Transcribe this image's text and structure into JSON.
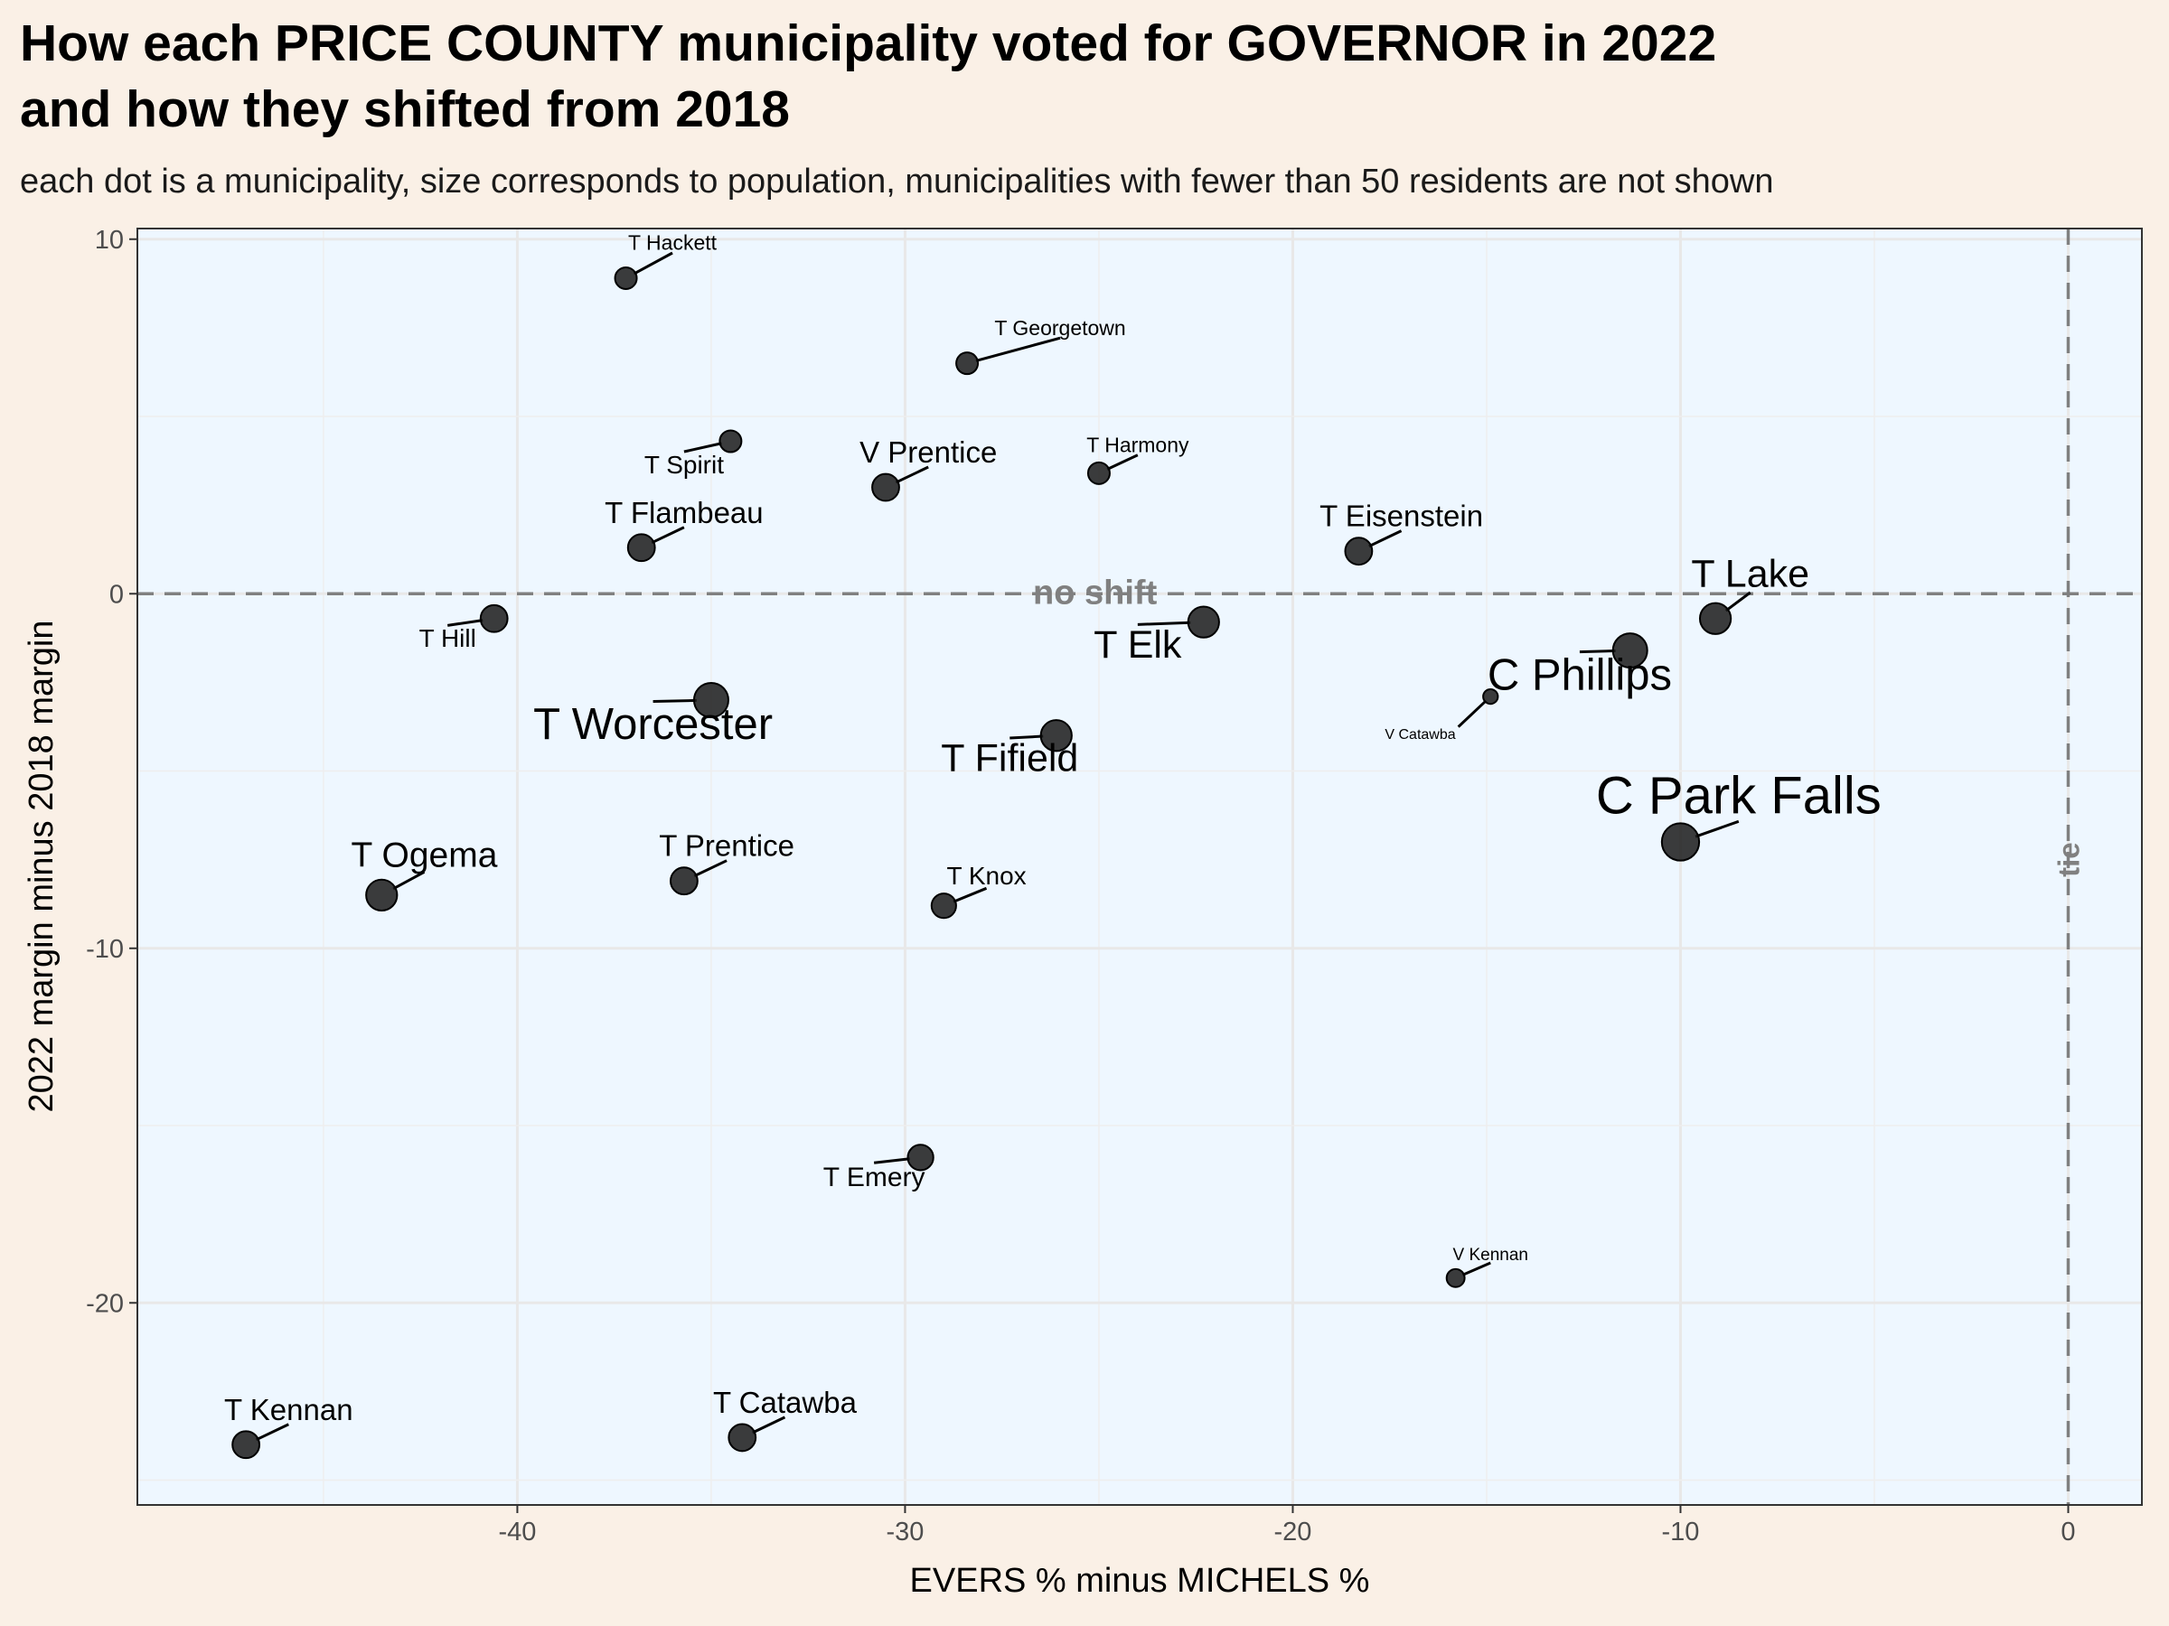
{
  "chart_data": {
    "type": "scatter",
    "title_line1": "How each PRICE COUNTY municipality voted for GOVERNOR in 2022",
    "title_line2": "and how they shifted from 2018",
    "subtitle": "each dot is a municipality, size corresponds to population, municipalities with fewer than 50 residents are not shown",
    "xlabel": "EVERS % minus MICHELS %",
    "ylabel": "2022 margin minus 2018 margin",
    "xlim": [
      -49.8,
      1.9
    ],
    "ylim": [
      -25.7,
      10.3
    ],
    "x_ticks": [
      -40,
      -30,
      -20,
      -10,
      0
    ],
    "y_ticks": [
      10,
      0,
      -10,
      -20
    ],
    "x_tick_labels": [
      "-40",
      "-30",
      "-20",
      "-10",
      "0"
    ],
    "y_tick_labels": [
      "10",
      "0",
      "-10",
      "-20"
    ],
    "reference_lines": {
      "horizontal": {
        "y": 0,
        "label": "no shift"
      },
      "vertical": {
        "x": 0,
        "label": "tie"
      }
    },
    "point_color": "#1a1a1a",
    "panel_background": "#EEF7FF",
    "page_background": "#FAF0E6",
    "grid": true,
    "points": [
      {
        "label": "T Hackett",
        "x": -37.2,
        "y": 8.9,
        "size": 1,
        "lx": -36.0,
        "ly": 9.7,
        "label_anchor": "middle",
        "label_size": 1
      },
      {
        "label": "T Georgetown",
        "x": -28.4,
        "y": 6.5,
        "size": 1,
        "lx": -26.0,
        "ly": 7.3,
        "label_anchor": "middle",
        "label_size": 1
      },
      {
        "label": "T Spirit",
        "x": -34.5,
        "y": 4.3,
        "size": 1,
        "lx": -35.7,
        "ly": 3.4,
        "label_anchor": "middle",
        "label_size": 1.5
      },
      {
        "label": "V Prentice",
        "x": -30.5,
        "y": 3.0,
        "size": 2,
        "lx": -29.4,
        "ly": 3.7,
        "label_anchor": "middle",
        "label_size": 2
      },
      {
        "label": "T Harmony",
        "x": -25.0,
        "y": 3.4,
        "size": 1,
        "lx": -24.0,
        "ly": 4.0,
        "label_anchor": "middle",
        "label_size": 1
      },
      {
        "label": "T Flambeau",
        "x": -36.8,
        "y": 1.3,
        "size": 2,
        "lx": -35.7,
        "ly": 2.0,
        "label_anchor": "middle",
        "label_size": 2
      },
      {
        "label": "T Eisenstein",
        "x": -18.3,
        "y": 1.2,
        "size": 2,
        "lx": -17.2,
        "ly": 1.9,
        "label_anchor": "middle",
        "label_size": 2
      },
      {
        "label": "T Lake",
        "x": -9.1,
        "y": -0.7,
        "size": 3,
        "lx": -8.2,
        "ly": 0.2,
        "label_anchor": "middle",
        "label_size": 3
      },
      {
        "label": "T Hill",
        "x": -40.6,
        "y": -0.7,
        "size": 2,
        "lx": -41.8,
        "ly": -1.5,
        "label_anchor": "middle",
        "label_size": 1.5
      },
      {
        "label": "T Elk",
        "x": -22.3,
        "y": -0.8,
        "size": 3,
        "lx": -24.0,
        "ly": -1.8,
        "label_anchor": "middle",
        "label_size": 3
      },
      {
        "label": "C Phillips",
        "x": -11.3,
        "y": -1.6,
        "size": 4,
        "lx": -12.6,
        "ly": -2.7,
        "label_anchor": "middle",
        "label_size": 3.6
      },
      {
        "label": "V Catawba",
        "x": -14.9,
        "y": -2.9,
        "size": 0.2,
        "lx": -15.8,
        "ly": -4.1,
        "label_anchor": "end",
        "label_size": 0.3
      },
      {
        "label": "T Worcester",
        "x": -35.0,
        "y": -3.0,
        "size": 4,
        "lx": -36.5,
        "ly": -4.1,
        "label_anchor": "middle",
        "label_size": 3.6
      },
      {
        "label": "T Fifield",
        "x": -26.1,
        "y": -4.0,
        "size": 3,
        "lx": -27.3,
        "ly": -5.0,
        "label_anchor": "middle",
        "label_size": 3
      },
      {
        "label": "C Park Falls",
        "x": -10.0,
        "y": -7.0,
        "size": 5,
        "lx": -8.5,
        "ly": -6.2,
        "label_anchor": "middle",
        "label_size": 4.5
      },
      {
        "label": "T Ogema",
        "x": -43.5,
        "y": -8.5,
        "size": 3,
        "lx": -42.4,
        "ly": -7.7,
        "label_anchor": "middle",
        "label_size": 2.6
      },
      {
        "label": "T Prentice",
        "x": -35.7,
        "y": -8.1,
        "size": 2,
        "lx": -34.6,
        "ly": -7.4,
        "label_anchor": "middle",
        "label_size": 2
      },
      {
        "label": "T Knox",
        "x": -29.0,
        "y": -8.8,
        "size": 1.5,
        "lx": -27.9,
        "ly": -8.2,
        "label_anchor": "middle",
        "label_size": 1.5
      },
      {
        "label": "T Emery",
        "x": -29.6,
        "y": -15.9,
        "size": 1.7,
        "lx": -30.8,
        "ly": -16.7,
        "label_anchor": "middle",
        "label_size": 1.7
      },
      {
        "label": "V Kennan",
        "x": -15.8,
        "y": -19.3,
        "size": 0.5,
        "lx": -14.9,
        "ly": -18.8,
        "label_anchor": "middle",
        "label_size": 0.6
      },
      {
        "label": "T Kennan",
        "x": -47.0,
        "y": -24.0,
        "size": 2,
        "lx": -45.9,
        "ly": -23.3,
        "label_anchor": "middle",
        "label_size": 2
      },
      {
        "label": "T Catawba",
        "x": -34.2,
        "y": -23.8,
        "size": 2,
        "lx": -33.1,
        "ly": -23.1,
        "label_anchor": "middle",
        "label_size": 2
      }
    ]
  }
}
